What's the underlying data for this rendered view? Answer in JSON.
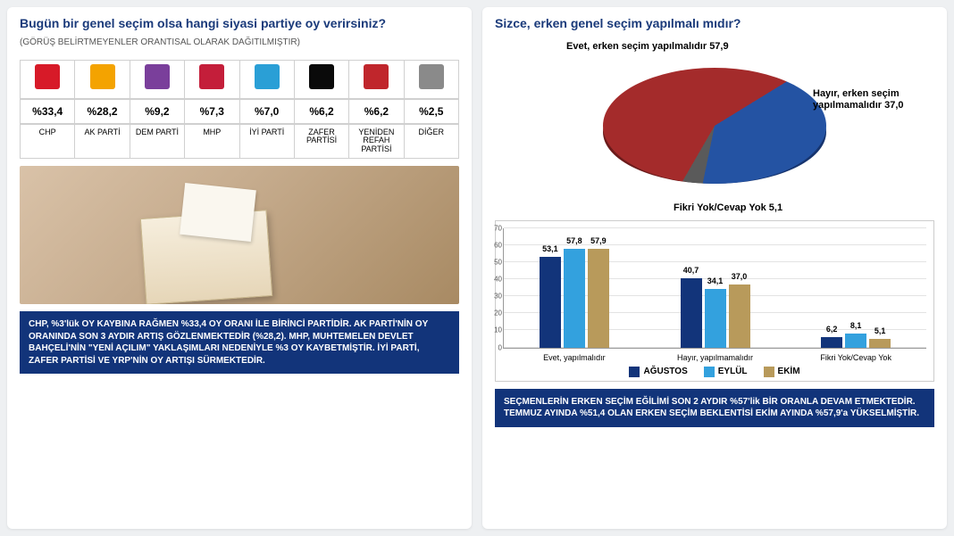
{
  "left": {
    "question": "Bugün bir genel seçim olsa hangi siyasi partiye oy verirsiniz?",
    "subtitle": "(GÖRÜŞ BELİRTMEYENLER ORANTISAL OLARAK DAĞITILMIŞTIR)",
    "parties": [
      {
        "name": "CHP",
        "pct": "%33,4",
        "color": "#d71a28"
      },
      {
        "name": "AK PARTİ",
        "pct": "%28,2",
        "color": "#f4a300"
      },
      {
        "name": "DEM PARTİ",
        "pct": "%9,2",
        "color": "#7a3f9b"
      },
      {
        "name": "MHP",
        "pct": "%7,3",
        "color": "#c41e3a"
      },
      {
        "name": "İYİ PARTİ",
        "pct": "%7,0",
        "color": "#2a9fd6"
      },
      {
        "name": "ZAFER PARTİSİ",
        "pct": "%6,2",
        "color": "#0a0a0a"
      },
      {
        "name": "YENİDEN REFAH PARTİSİ",
        "pct": "%6,2",
        "color": "#c0262c"
      },
      {
        "name": "DİĞER",
        "pct": "%2,5",
        "color": "#8a8a8a"
      }
    ],
    "note": "CHP, %3'lük OY KAYBINA RAĞMEN %33,4 OY ORANI İLE BİRİNCİ PARTİDİR. AK PARTİ'NİN OY ORANINDA SON 3 AYDIR  ARTIŞ GÖZLENMEKTEDİR (%28,2). MHP, MUHTEMELEN DEVLET BAHÇELİ'NİN \"YENİ AÇILIM\" YAKLAŞIMLARI NEDENİYLE %3 OY KAYBETMİŞTİR. İYİ PARTİ, ZAFER PARTİSİ VE YRP'NİN OY ARTIŞI SÜRMEKTEDİR."
  },
  "right": {
    "question": "Sizce, erken genel seçim yapılmalı mıdır?",
    "pie": {
      "type": "pie",
      "slices": [
        {
          "label": "Evet, erken seçim yapılmalıdır 57,9",
          "value": 57.9,
          "color": "#a42b2b"
        },
        {
          "label": "Hayır, erken seçim yapılmamalıdır 37,0",
          "value": 37.0,
          "color": "#2453a3"
        },
        {
          "label": "Fikri Yok/Cevap Yok 5,1",
          "value": 5.1,
          "color": "#5a5a5a"
        }
      ],
      "label_fontsize": 11,
      "depth_color_dark": "#58121a"
    },
    "bars": {
      "type": "grouped-bar",
      "ylim": [
        0,
        70
      ],
      "ytick_step": 10,
      "series": [
        {
          "name": "AĞUSTOS",
          "color": "#12347a"
        },
        {
          "name": "EYLÜL",
          "color": "#33a1de"
        },
        {
          "name": "EKİM",
          "color": "#b89a5b"
        }
      ],
      "groups": [
        {
          "label": "Evet, yapılmalıdır",
          "values": [
            53.1,
            57.8,
            57.9
          ],
          "labels": [
            "53,1",
            "57,8",
            "57,9"
          ]
        },
        {
          "label": "Hayır, yapılmamalıdır",
          "values": [
            40.7,
            34.1,
            37.0
          ],
          "labels": [
            "40,7",
            "34,1",
            "37,0"
          ]
        },
        {
          "label": "Fikri Yok/Cevap Yok",
          "values": [
            6.2,
            8.1,
            5.1
          ],
          "labels": [
            "6,2",
            "8,1",
            "5,1"
          ]
        }
      ],
      "grid_color": "#e3e3e3",
      "label_fontsize": 9
    },
    "note": "SEÇMENLERİN ERKEN SEÇİM EĞİLİMİ SON 2 AYDIR %57'lik BİR ORANLA DEVAM ETMEKTEDİR. TEMMUZ AYINDA %51,4 OLAN ERKEN SEÇİM BEKLENTİSİ EKİM AYINDA %57,9'a YÜKSELMİŞTİR."
  }
}
